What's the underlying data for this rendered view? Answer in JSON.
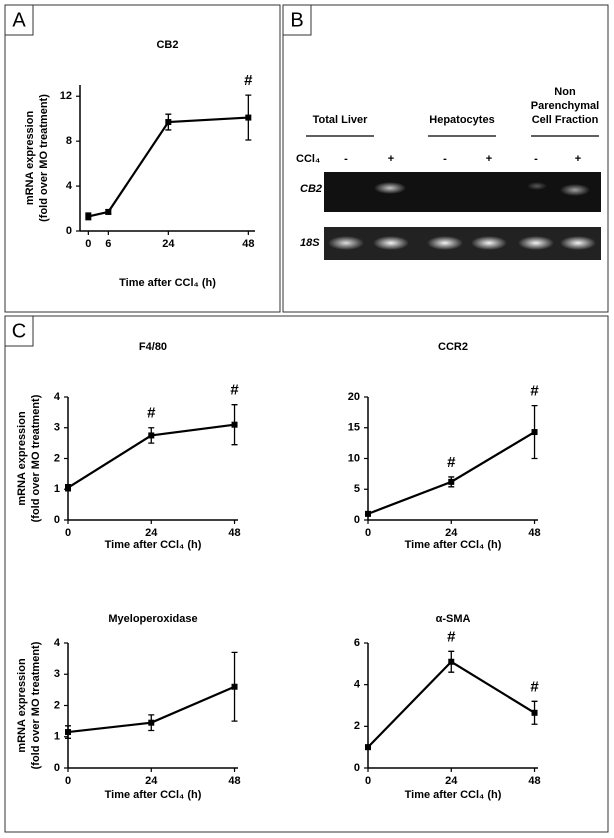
{
  "panels": [
    "A",
    "B",
    "C"
  ],
  "gel": {
    "groups": [
      [
        "Total Liver"
      ],
      [
        "Hepatocytes"
      ],
      [
        "Non",
        "Parenchymal",
        "Cell Fraction"
      ]
    ],
    "treatment_label": "CCl₄",
    "lane_signs": [
      "-",
      "+",
      "-",
      "+",
      "-",
      "+"
    ],
    "bands": [
      "CB2",
      "18S"
    ]
  },
  "chart_data": [
    {
      "type": "line",
      "title": "CB2",
      "x": [
        0,
        6,
        24,
        48
      ],
      "values": [
        1.3,
        1.7,
        9.7,
        10.1
      ],
      "errors": [
        0.3,
        0.2,
        0.7,
        2.0
      ],
      "color": "#000000",
      "xlim": [
        -2.5,
        50
      ],
      "ylim": [
        0,
        13
      ],
      "xticks": [
        0,
        6,
        24,
        48
      ],
      "yticks": [
        0,
        4,
        8,
        12
      ],
      "x_label": "Time after CCl₄ (h)",
      "y_label": [
        "mRNA expression",
        "(fold over MO treatment)"
      ],
      "annotations": [
        {
          "x": 48,
          "text": "#"
        }
      ]
    },
    {
      "type": "line",
      "title": "F4/80",
      "x": [
        0,
        24,
        48
      ],
      "values": [
        1.05,
        2.75,
        3.1
      ],
      "errors": [
        0.1,
        0.25,
        0.65
      ],
      "color": "#000000",
      "xlim": [
        0,
        49
      ],
      "ylim": [
        0,
        4
      ],
      "xticks": [
        0,
        24,
        48
      ],
      "yticks": [
        0,
        1,
        2,
        3,
        4
      ],
      "x_label": "Time after CCl₄ (h)",
      "y_label": [
        "mRNA expression",
        "(fold over MO treatment)"
      ],
      "annotations": [
        {
          "x": 24,
          "text": "#"
        },
        {
          "x": 48,
          "text": "#"
        }
      ]
    },
    {
      "type": "line",
      "title": "CCR2",
      "x": [
        0,
        24,
        48
      ],
      "values": [
        1,
        6.2,
        14.3
      ],
      "errors": [
        0.3,
        0.8,
        4.3
      ],
      "color": "#000000",
      "xlim": [
        0,
        49
      ],
      "ylim": [
        0,
        20
      ],
      "xticks": [
        0,
        24,
        48
      ],
      "yticks": [
        0,
        5,
        10,
        15,
        20
      ],
      "x_label": "Time after CCl₄ (h)",
      "annotations": [
        {
          "x": 24,
          "text": "#"
        },
        {
          "x": 48,
          "text": "#"
        }
      ]
    },
    {
      "type": "line",
      "title": "Myeloperoxidase",
      "x": [
        0,
        24,
        48
      ],
      "values": [
        1.15,
        1.45,
        2.6
      ],
      "errors": [
        0.2,
        0.25,
        1.1
      ],
      "color": "#000000",
      "xlim": [
        0,
        49
      ],
      "ylim": [
        0,
        4
      ],
      "xticks": [
        0,
        24,
        48
      ],
      "yticks": [
        0,
        1,
        2,
        3,
        4
      ],
      "x_label": "Time after CCl₄ (h)",
      "y_label": [
        "mRNA expression",
        "(fold over MO treatment)"
      ]
    },
    {
      "type": "line",
      "title": "α-SMA",
      "x": [
        0,
        24,
        48
      ],
      "values": [
        1,
        5.1,
        2.65
      ],
      "errors": [
        0.1,
        0.5,
        0.55
      ],
      "color": "#000000",
      "xlim": [
        0,
        49
      ],
      "ylim": [
        0,
        6
      ],
      "xticks": [
        0,
        24,
        48
      ],
      "yticks": [
        0,
        2,
        4,
        6
      ],
      "x_label": "Time after CCl₄ (h)",
      "annotations": [
        {
          "x": 24,
          "text": "#"
        },
        {
          "x": 48,
          "text": "#"
        }
      ]
    }
  ]
}
